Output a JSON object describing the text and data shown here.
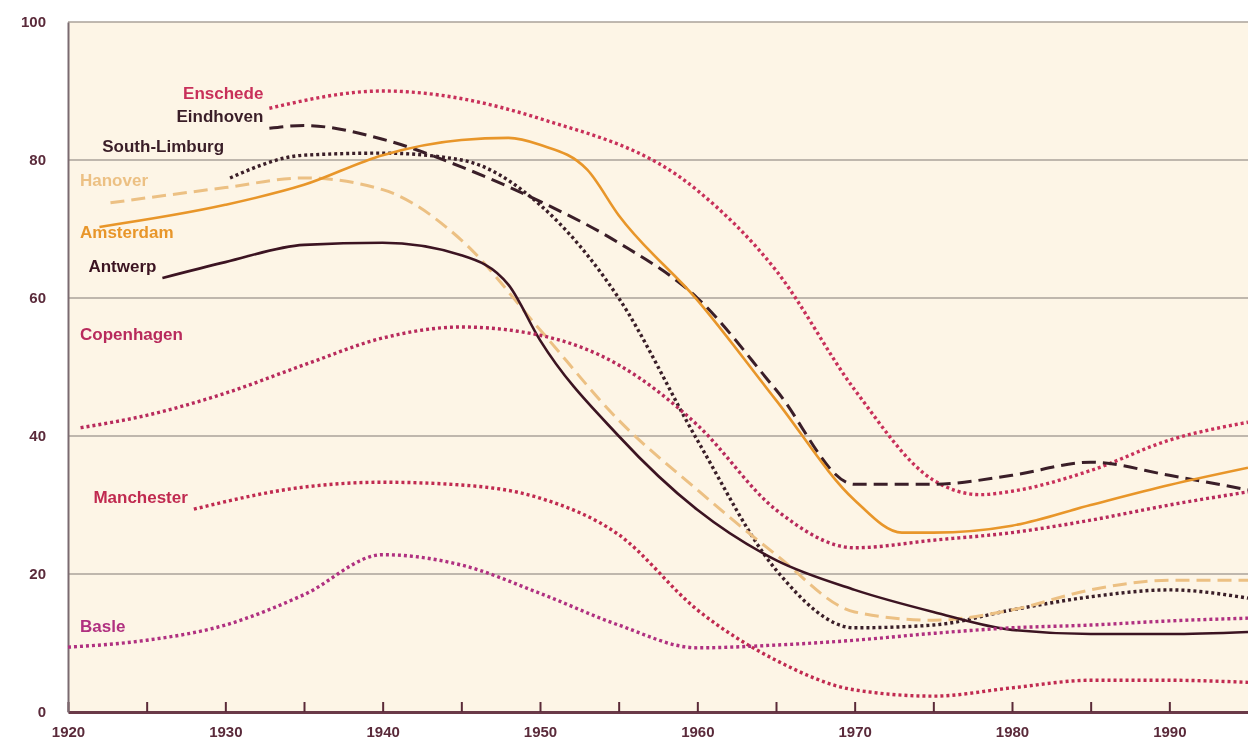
{
  "chart_data": {
    "type": "line",
    "xlim": [
      1920,
      1995
    ],
    "ylim": [
      0,
      100
    ],
    "xticks": [
      1920,
      {
        "value": 1925,
        "label": null
      },
      1930,
      {
        "value": 1935,
        "label": null
      },
      1940,
      {
        "value": 1945,
        "label": null
      },
      1950,
      {
        "value": 1955,
        "label": null
      },
      1960,
      {
        "value": 1965,
        "label": null
      },
      1970,
      {
        "value": 1975,
        "label": null
      },
      1980,
      {
        "value": 1985,
        "label": null
      },
      1990
    ],
    "yticks": [
      0,
      20,
      40,
      60,
      80,
      100
    ],
    "grid": "y",
    "legend": false,
    "series": [
      {
        "name": "Enschede",
        "color": "#c8305a",
        "line_style": "dotted",
        "x": [
          1932.8,
          1940,
          1950,
          1960,
          1965,
          1970,
          1975,
          1978,
          1980,
          1985,
          1990,
          1995
        ],
        "values": [
          87.5,
          90,
          86,
          75.6,
          64,
          46.7,
          33.6,
          31.5,
          32,
          35,
          39.4,
          42
        ]
      },
      {
        "name": "Eindhoven",
        "color": "#3a1e28",
        "line_style": "dashed",
        "x": [
          1932.8,
          1935,
          1940,
          1945,
          1950,
          1955,
          1960,
          1965,
          1970,
          1975,
          1980,
          1985,
          1990,
          1995
        ],
        "values": [
          84.6,
          85,
          83,
          79,
          74,
          68,
          60,
          46.7,
          33,
          33,
          34.3,
          36.2,
          34.3,
          32.2
        ]
      },
      {
        "name": "South-Limburg",
        "color": "#3a1e28",
        "line_style": "dotted",
        "x": [
          1930.3,
          1935,
          1940,
          1945,
          1950,
          1955,
          1960,
          1965,
          1970,
          1975,
          1980,
          1985,
          1990,
          1995
        ],
        "values": [
          77.4,
          80.7,
          81,
          80,
          73.5,
          60,
          39.4,
          20.6,
          12.2,
          12.6,
          14.8,
          16.7,
          17.7,
          16.5
        ]
      },
      {
        "name": "Hanover",
        "color": "#ecc083",
        "line_style": "dashed",
        "x": [
          1922.7,
          1930,
          1935,
          1940,
          1945,
          1950,
          1955,
          1960,
          1965,
          1970,
          1975,
          1980,
          1985,
          1990,
          1995
        ],
        "values": [
          73.8,
          76,
          77.4,
          75.7,
          68.4,
          55.4,
          42.3,
          32.2,
          22.8,
          14.5,
          13.3,
          14.8,
          17.7,
          19.1,
          19.1
        ]
      },
      {
        "name": "Amsterdam",
        "color": "#e8962a",
        "line_style": "solid",
        "x": [
          1922,
          1930,
          1935,
          1940,
          1945,
          1948,
          1950,
          1953,
          1955,
          1960,
          1965,
          1970,
          1973,
          1975,
          1980,
          1985,
          1990,
          1995
        ],
        "values": [
          70.3,
          73.5,
          76.4,
          80.7,
          82.9,
          83.2,
          82.2,
          78.6,
          72,
          59.7,
          45.2,
          30.7,
          26,
          26,
          27,
          30,
          32.9,
          35.4
        ]
      },
      {
        "name": "Antwerp",
        "color": "#3c1422",
        "line_style": "solid",
        "x": [
          1926,
          1930,
          1935,
          1940,
          1945,
          1948,
          1950,
          1955,
          1960,
          1965,
          1970,
          1975,
          1980,
          1985,
          1990,
          1995
        ],
        "values": [
          62.9,
          65.2,
          67.7,
          68,
          66.2,
          61.9,
          53.9,
          40,
          29.3,
          22,
          17.7,
          14.5,
          11.9,
          11.3,
          11.3,
          11.6
        ]
      },
      {
        "name": "Copenhagen",
        "color": "#b82a5c",
        "line_style": "dotted",
        "x": [
          1920.8,
          1925,
          1930,
          1935,
          1940,
          1945,
          1950,
          1955,
          1960,
          1965,
          1970,
          1975,
          1980,
          1985,
          1990,
          1995
        ],
        "values": [
          41.2,
          43,
          46.2,
          50.3,
          54.2,
          55.8,
          54.6,
          50.3,
          41.6,
          29.3,
          23.8,
          24.9,
          26,
          27.8,
          30,
          31.9
        ]
      },
      {
        "name": "Manchester",
        "color": "#c02a50",
        "line_style": "dotted",
        "x": [
          1928,
          1935,
          1940,
          1945,
          1950,
          1955,
          1960,
          1965,
          1970,
          1975,
          1980,
          1985,
          1990,
          1995
        ],
        "values": [
          29.4,
          32.6,
          33.3,
          32.9,
          31,
          25.7,
          14.8,
          7.5,
          3.2,
          2.3,
          3.5,
          4.6,
          4.6,
          4.3
        ]
      },
      {
        "name": "Basle",
        "color": "#b03080",
        "line_style": "dotted",
        "x": [
          1920,
          1925,
          1930,
          1935,
          1940,
          1945,
          1950,
          1955,
          1960,
          1965,
          1970,
          1975,
          1980,
          1985,
          1990,
          1995
        ],
        "values": [
          9.4,
          10.4,
          12.6,
          17,
          22.8,
          21.3,
          17.2,
          12.6,
          9.3,
          9.7,
          10.4,
          11.4,
          12.2,
          12.6,
          13.2,
          13.6
        ]
      }
    ]
  }
}
